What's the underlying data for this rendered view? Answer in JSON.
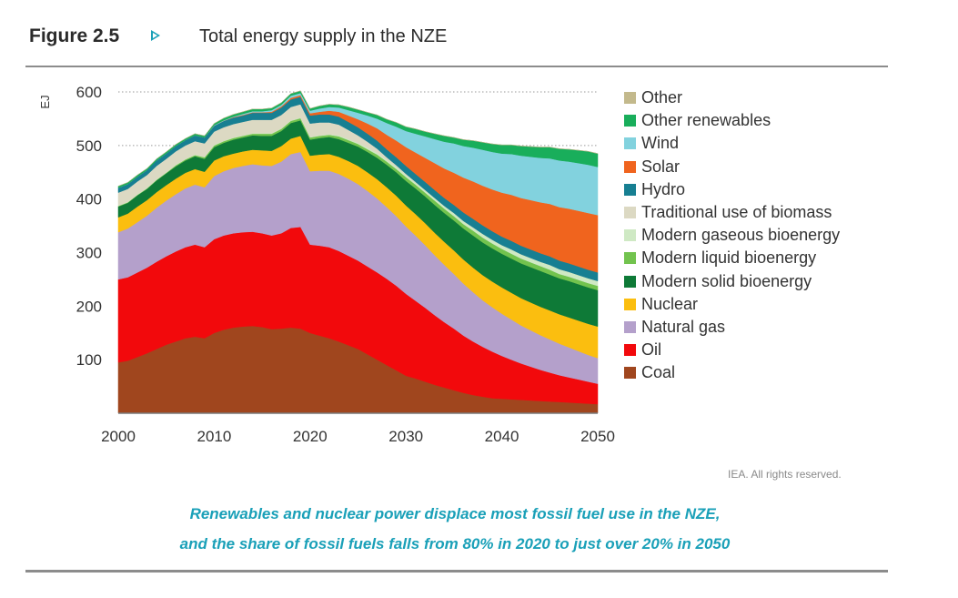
{
  "header": {
    "figure_number": "Figure 2.5",
    "title": "Total energy supply in the NZE"
  },
  "source_note": "IEA. All rights reserved.",
  "caption": {
    "line1": "Renewables and nuclear power displace most fossil fuel use in the NZE,",
    "line2": "and the share of fossil fuels falls from 80% in 2020 to just over 20% in 2050"
  },
  "colors": {
    "accent": "#1aa0b8",
    "rule": "#8c8c8c"
  },
  "chart_data": {
    "type": "area",
    "stacked": true,
    "title": "Total energy supply in the NZE",
    "ylabel": "EJ",
    "xlabel": "",
    "xlim": [
      2000,
      2050
    ],
    "ylim": [
      0,
      600
    ],
    "x_ticks": [
      2000,
      2010,
      2020,
      2030,
      2040,
      2050
    ],
    "y_ticks": [
      100,
      200,
      300,
      400,
      500,
      600
    ],
    "grid": "dotted lines at 500 and 600",
    "legend_position": "right",
    "x": [
      2000,
      2001,
      2002,
      2003,
      2004,
      2005,
      2006,
      2007,
      2008,
      2009,
      2010,
      2011,
      2012,
      2013,
      2014,
      2015,
      2016,
      2017,
      2018,
      2019,
      2020,
      2021,
      2022,
      2023,
      2024,
      2025,
      2026,
      2027,
      2028,
      2029,
      2030,
      2031,
      2032,
      2033,
      2034,
      2035,
      2036,
      2037,
      2038,
      2039,
      2040,
      2041,
      2042,
      2043,
      2044,
      2045,
      2046,
      2047,
      2048,
      2049,
      2050
    ],
    "series": [
      {
        "name": "Coal",
        "color": "#a0461e",
        "values": [
          95,
          98,
          105,
          112,
          120,
          128,
          134,
          140,
          143,
          140,
          150,
          156,
          160,
          162,
          163,
          161,
          157,
          158,
          160,
          158,
          150,
          145,
          140,
          134,
          127,
          120,
          110,
          100,
          90,
          80,
          70,
          65,
          59,
          53,
          48,
          43,
          38,
          34,
          31,
          28,
          27,
          26,
          25,
          24,
          23,
          22,
          21,
          20,
          19,
          18,
          17
        ]
      },
      {
        "name": "Oil",
        "color": "#f2090c",
        "values": [
          155,
          156,
          158,
          160,
          163,
          165,
          168,
          170,
          172,
          170,
          175,
          176,
          176,
          176,
          176,
          175,
          175,
          178,
          186,
          190,
          165,
          168,
          170,
          169,
          167,
          165,
          164,
          163,
          161,
          158,
          153,
          145,
          138,
          130,
          122,
          115,
          107,
          100,
          93,
          87,
          80,
          74,
          68,
          63,
          58,
          54,
          50,
          47,
          44,
          41,
          38
        ]
      },
      {
        "name": "Natural gas",
        "color": "#b4a0cb",
        "values": [
          88,
          91,
          94,
          97,
          101,
          104,
          107,
          110,
          112,
          112,
          118,
          120,
          122,
          124,
          126,
          127,
          130,
          134,
          138,
          140,
          137,
          140,
          143,
          144,
          144,
          143,
          141,
          138,
          134,
          130,
          126,
          122,
          117,
          112,
          107,
          102,
          97,
          92,
          87,
          83,
          79,
          75,
          71,
          68,
          65,
          62,
          59,
          56,
          53,
          50,
          48
        ]
      },
      {
        "name": "Nuclear",
        "color": "#fbbe0f",
        "values": [
          28,
          28,
          29,
          29,
          29,
          29,
          29,
          29,
          29,
          29,
          29,
          28,
          27,
          27,
          27,
          28,
          28,
          29,
          29,
          30,
          29,
          30,
          31,
          32,
          33,
          34,
          35,
          36,
          37,
          38,
          39,
          40,
          41,
          42,
          43,
          44,
          45,
          46,
          47,
          48,
          49,
          50,
          51,
          52,
          53,
          54,
          55,
          56,
          57,
          58,
          59
        ]
      },
      {
        "name": "Modern solid bioenergy",
        "color": "#0e7a37",
        "values": [
          20,
          20,
          21,
          21,
          22,
          22,
          23,
          23,
          24,
          24,
          25,
          25,
          26,
          26,
          27,
          27,
          28,
          28,
          29,
          29,
          30,
          31,
          32,
          33,
          34,
          36,
          38,
          40,
          42,
          44,
          46,
          48,
          50,
          52,
          54,
          56,
          58,
          60,
          61,
          62,
          63,
          64,
          65,
          66,
          67,
          67,
          67,
          68,
          68,
          68,
          68
        ]
      },
      {
        "name": "Modern liquid bioenergy",
        "color": "#72c34e",
        "values": [
          1,
          1,
          1,
          1,
          1,
          1,
          2,
          2,
          2,
          3,
          3,
          3,
          3,
          3,
          3,
          4,
          4,
          4,
          4,
          4,
          4,
          4,
          4,
          5,
          5,
          5,
          5,
          6,
          6,
          6,
          7,
          7,
          7,
          8,
          8,
          8,
          8,
          9,
          9,
          9,
          9,
          9,
          9,
          9,
          9,
          9,
          8,
          8,
          8,
          8,
          8
        ]
      },
      {
        "name": "Modern gaseous bioenergy",
        "color": "#cfe9c4",
        "values": [
          1,
          1,
          1,
          1,
          1,
          1,
          1,
          1,
          1,
          1,
          1,
          1,
          1,
          1,
          1,
          1,
          1,
          1,
          1,
          1,
          1,
          1,
          1,
          2,
          2,
          2,
          3,
          3,
          3,
          4,
          4,
          4,
          5,
          5,
          5,
          6,
          6,
          6,
          7,
          7,
          7,
          8,
          8,
          8,
          8,
          9,
          9,
          9,
          9,
          9,
          9
        ]
      },
      {
        "name": "Traditional use of biomass",
        "color": "#dcd9c3",
        "values": [
          24,
          24,
          24,
          24,
          25,
          25,
          25,
          25,
          25,
          25,
          25,
          25,
          25,
          25,
          25,
          25,
          25,
          25,
          25,
          25,
          25,
          24,
          22,
          20,
          17,
          14,
          11,
          8,
          5,
          3,
          2,
          1,
          0,
          0,
          0,
          0,
          0,
          0,
          0,
          0,
          0,
          0,
          0,
          0,
          0,
          0,
          0,
          0,
          0,
          0,
          0
        ]
      },
      {
        "name": "Hydro",
        "color": "#177f92",
        "values": [
          9,
          9,
          9,
          9,
          10,
          10,
          10,
          10,
          11,
          11,
          11,
          12,
          12,
          12,
          13,
          13,
          13,
          14,
          14,
          14,
          15,
          15,
          15,
          15,
          15,
          15,
          15,
          15,
          15,
          15,
          15,
          15,
          15,
          15,
          15,
          15,
          16,
          16,
          16,
          16,
          16,
          16,
          16,
          16,
          16,
          16,
          16,
          16,
          16,
          16,
          16
        ]
      },
      {
        "name": "Solar",
        "color": "#f0641e",
        "values": [
          0,
          0,
          0,
          0,
          0,
          0,
          0,
          0,
          0,
          0,
          0,
          0,
          1,
          1,
          1,
          1,
          2,
          2,
          3,
          3,
          4,
          5,
          7,
          9,
          12,
          15,
          19,
          23,
          27,
          31,
          35,
          40,
          45,
          50,
          55,
          60,
          65,
          70,
          74,
          78,
          82,
          86,
          89,
          92,
          95,
          98,
          100,
          102,
          104,
          106,
          107
        ]
      },
      {
        "name": "Wind",
        "color": "#82d2de",
        "values": [
          0,
          0,
          0,
          0,
          0,
          0,
          0,
          0,
          0,
          0,
          1,
          1,
          1,
          2,
          2,
          2,
          3,
          3,
          4,
          4,
          5,
          6,
          7,
          8,
          10,
          12,
          15,
          18,
          22,
          26,
          30,
          35,
          40,
          45,
          50,
          55,
          59,
          63,
          67,
          70,
          73,
          76,
          79,
          81,
          83,
          85,
          87,
          88,
          89,
          90,
          90
        ]
      },
      {
        "name": "Other renewables",
        "color": "#19ae5b",
        "values": [
          3,
          3,
          3,
          3,
          3,
          3,
          3,
          3,
          3,
          3,
          3,
          4,
          4,
          4,
          4,
          4,
          4,
          4,
          4,
          4,
          4,
          5,
          5,
          5,
          6,
          6,
          6,
          7,
          7,
          8,
          8,
          9,
          9,
          10,
          11,
          11,
          12,
          13,
          14,
          15,
          16,
          17,
          18,
          19,
          20,
          21,
          22,
          23,
          24,
          25,
          25
        ]
      },
      {
        "name": "Other",
        "color": "#c3b98c",
        "values": [
          0,
          0,
          0,
          0,
          0,
          0,
          0,
          0,
          0,
          0,
          0,
          0,
          0,
          0,
          0,
          0,
          0,
          0,
          0,
          0,
          0,
          0,
          0,
          0,
          0,
          0,
          0,
          0,
          0,
          0,
          0,
          0,
          0,
          0,
          0,
          0,
          0,
          0,
          0,
          0,
          0,
          0,
          0,
          0,
          0,
          0,
          0,
          0,
          0,
          0,
          0
        ]
      }
    ]
  }
}
